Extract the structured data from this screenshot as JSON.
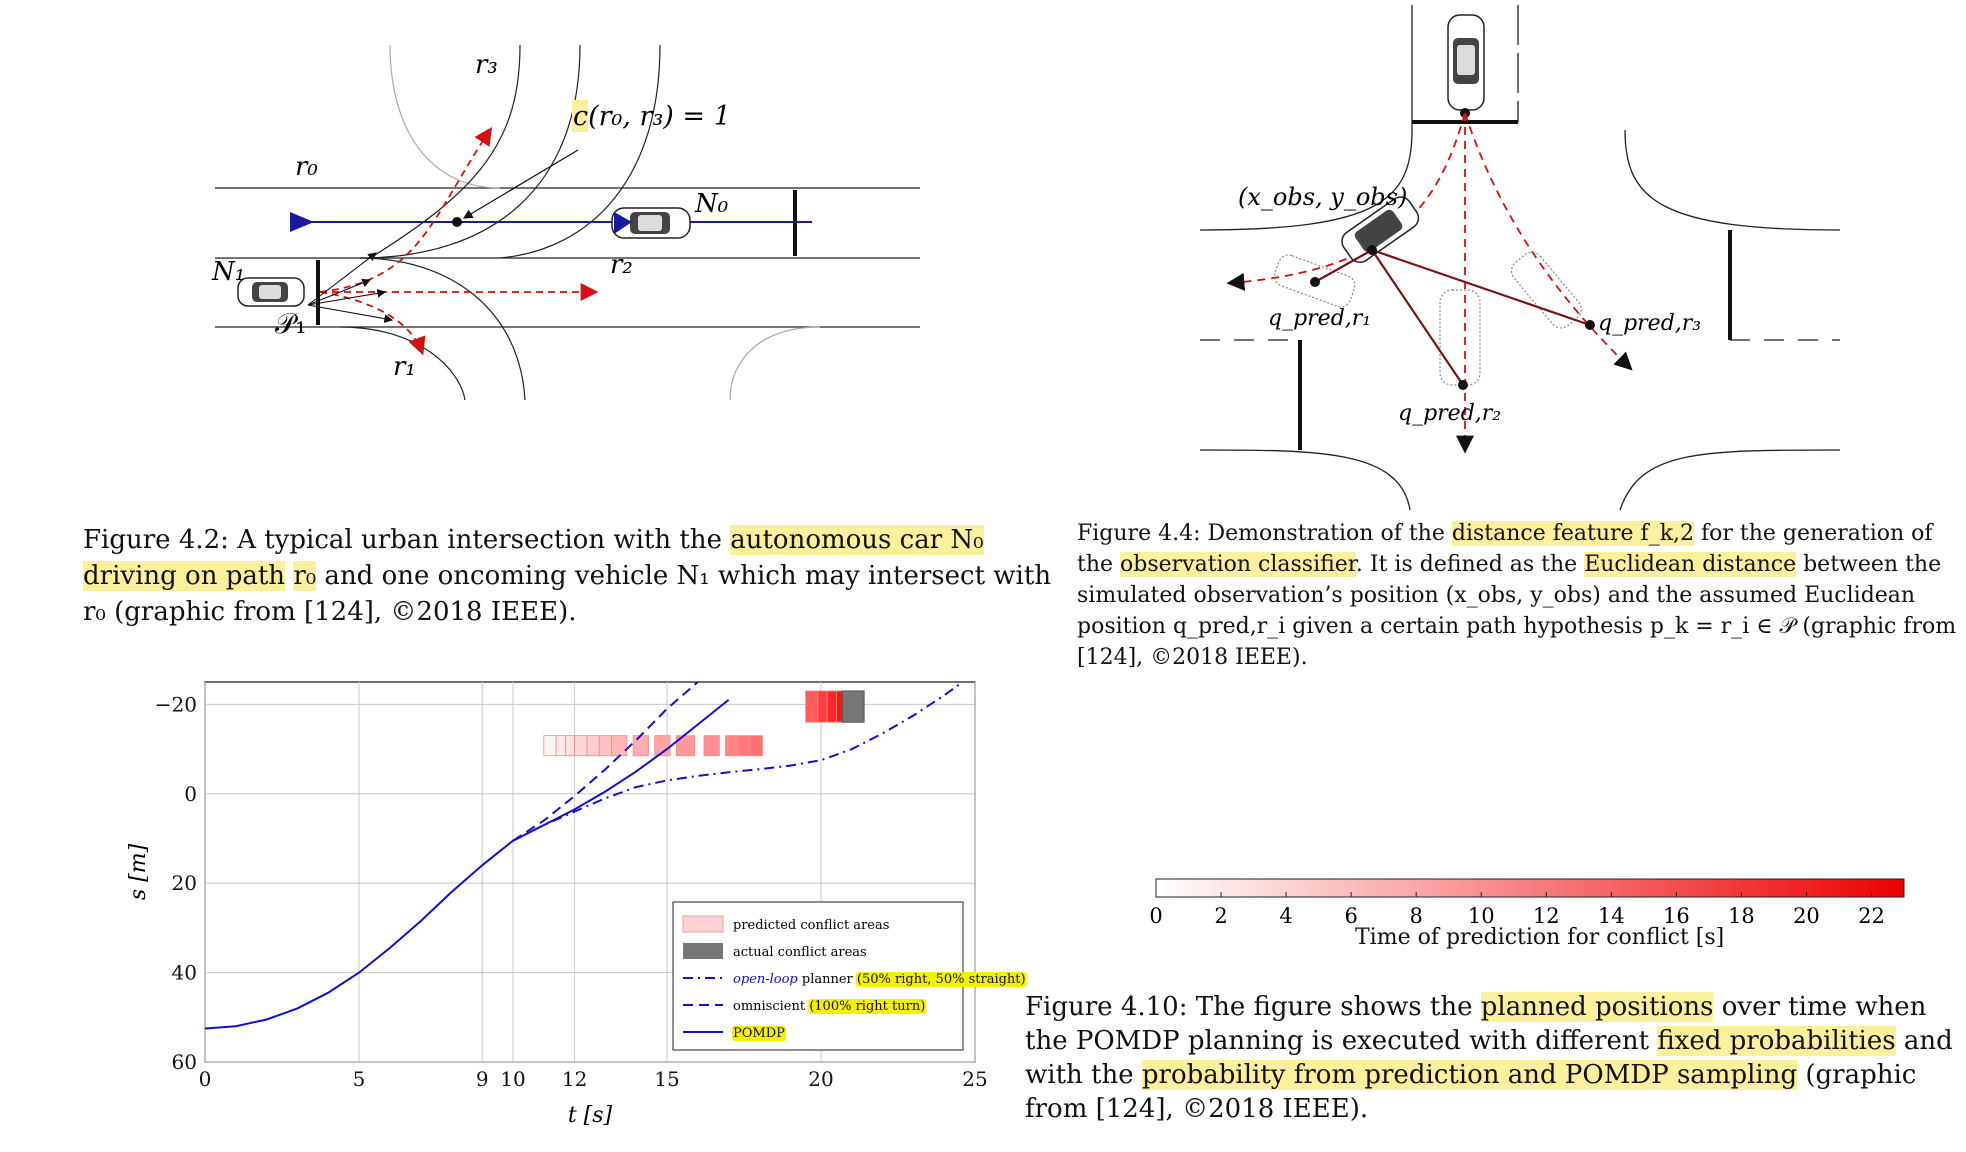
{
  "fig42": {
    "labels": {
      "r0": "r₀",
      "r1": "r₁",
      "r2": "r₂",
      "r3": "r₃",
      "N0": "N₀",
      "N1": "N₁",
      "P1": "𝒫₁",
      "conflict": "c(r₀, r₃) = 1"
    },
    "caption": {
      "prefix": "Figure 4.2: A typical urban intersection with the ",
      "highlight1": "autonomous car N₀ driving on path",
      "highlight2": "r₀",
      "suffix": " and one oncoming vehicle N₁ which may intersect with r₀ (graphic from [124], ©2018 IEEE)."
    }
  },
  "fig44": {
    "labels": {
      "obs": "(x_obs, y_obs)",
      "q1": "q_pred,r₁",
      "q2": "q_pred,r₂",
      "q3": "q_pred,r₃"
    },
    "caption": {
      "p1": "Figure 4.4: Demonstration of the ",
      "h1": "distance feature f_k,2",
      "p2": " for the generation of the ",
      "h2": "observation classifier",
      "p3": ". It is defined as the ",
      "h3": "Euclidean distance",
      "p4": " between the simulated observation’s position (x_obs, y_obs) and the assumed Euclidean position q_pred,r_i given a certain path hypothesis p_k = r_i ∈ 𝒫 (graphic from [124], ©2018 IEEE)."
    }
  },
  "fig410": {
    "caption": {
      "p1": "Figure 4.10: The figure shows the ",
      "h1": "planned positions",
      "p2": " over time when the POMDP planning is executed with different ",
      "h2": "fixed probabilities",
      "p3": " and with the ",
      "h3": "probability from prediction and POMDP sampling",
      "p4": " (graphic from [124], ©2018 IEEE)."
    },
    "colorbar": {
      "ticks": [
        "0",
        "2",
        "4",
        "6",
        "8",
        "10",
        "12",
        "14",
        "16",
        "18",
        "20",
        "22"
      ],
      "label": "Time of prediction for conflict [s]"
    }
  },
  "chart_data": {
    "type": "line",
    "xlabel": "t [s]",
    "ylabel": "s [m]",
    "xlim": [
      0,
      25
    ],
    "ylim": [
      60,
      -25
    ],
    "xticks": [
      "0",
      "5",
      "9",
      "10",
      "12",
      "15",
      "20",
      "25"
    ],
    "yticks": [
      "−20",
      "0",
      "20",
      "40",
      "60"
    ],
    "grid": true,
    "legend_position": "bottom-right",
    "legend": [
      {
        "label": "predicted conflict areas",
        "marker": "pink-box"
      },
      {
        "label": "actual conflict areas",
        "marker": "gray-box"
      },
      {
        "label_italic": "open-loop",
        "label": " planner ",
        "label_hl": "(50% right, 50% straight)",
        "style": "dashdot"
      },
      {
        "label": "omniscient ",
        "label_hl": "(100% right turn)",
        "style": "dashed"
      },
      {
        "label_hl": "POMDP",
        "style": "solid"
      }
    ],
    "color": "#1010d0",
    "series": [
      {
        "name": "POMDP",
        "style": "solid",
        "x": [
          0,
          1,
          2,
          3,
          4,
          5,
          6,
          7,
          8,
          9,
          10,
          11,
          12,
          13,
          14,
          15,
          16,
          17
        ],
        "y": [
          52.5,
          52,
          50.5,
          48,
          44.5,
          40,
          34.5,
          28.5,
          22,
          16,
          10.5,
          7,
          3.5,
          -0.5,
          -5,
          -10,
          -15.5,
          -21
        ]
      },
      {
        "name": "omniscient (100% right turn)",
        "style": "dashed",
        "x": [
          10,
          11,
          12,
          13,
          14,
          15,
          16
        ],
        "y": [
          10.5,
          6,
          0.5,
          -5.5,
          -12,
          -19,
          -25
        ]
      },
      {
        "name": "open-loop planner (50% right, 50% straight)",
        "style": "dashdot",
        "x": [
          10,
          11,
          12,
          13,
          14,
          15,
          16,
          17,
          18,
          19,
          20,
          21,
          22,
          23,
          24,
          24.5
        ],
        "y": [
          10.5,
          7,
          4,
          1,
          -1.5,
          -3,
          -4,
          -4.8,
          -5.5,
          -6.3,
          -7.5,
          -10,
          -13.5,
          -17.5,
          -22,
          -24.5
        ]
      }
    ],
    "predicted_conflict_areas": {
      "s_range": [
        -13,
        -8.5
      ],
      "t_intervals": [
        [
          11,
          11.4
        ],
        [
          11.4,
          11.7
        ],
        [
          11.7,
          12
        ],
        [
          12,
          12.4
        ],
        [
          12.4,
          12.8
        ],
        [
          12.8,
          13.2
        ],
        [
          13.2,
          13.7
        ],
        [
          13.9,
          14.4
        ],
        [
          14.6,
          15.1
        ],
        [
          15.3,
          15.9
        ],
        [
          16.2,
          16.7
        ],
        [
          16.9,
          17.3
        ],
        [
          17.3,
          17.7
        ],
        [
          17.7,
          18.1
        ]
      ],
      "prediction_times": [
        1,
        2,
        3,
        4,
        5,
        6,
        7,
        8,
        9,
        10,
        11,
        12,
        13,
        14
      ]
    },
    "late_conflict_areas": {
      "s_range": [
        -23,
        -16
      ],
      "t_intervals": [
        [
          19.5,
          19.9
        ],
        [
          19.9,
          20.2
        ],
        [
          20.2,
          20.5
        ],
        [
          20.5,
          20.8
        ]
      ],
      "prediction_times": [
        16,
        19,
        21,
        23
      ]
    },
    "actual_conflict_area": {
      "t": [
        20.7,
        21.4
      ],
      "s_range": [
        -23,
        -16
      ]
    }
  }
}
